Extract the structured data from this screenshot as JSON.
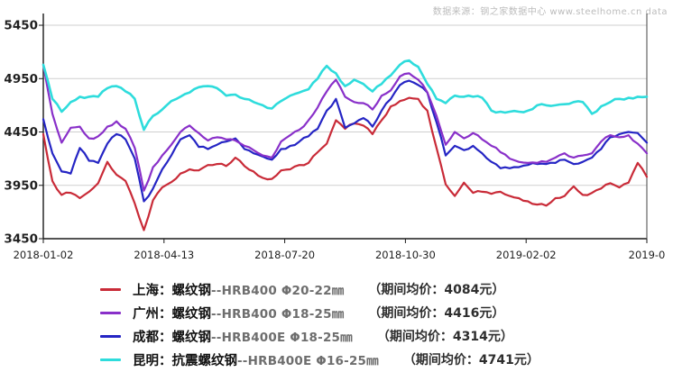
{
  "watermark": "数据来源：钢之家数据中心 www.steelhome.cn data",
  "chart_data": {
    "type": "line",
    "title": "",
    "xlabel": "",
    "ylabel": "",
    "grid": true,
    "legend_position": "bottom",
    "ylim": [
      3450,
      5560
    ],
    "y_ticks": [
      5450,
      4950,
      4450,
      3950,
      3450
    ],
    "x_tick_labels": [
      "2018-01-02",
      "2018-04-13",
      "2018-07-20",
      "2018-10-30",
      "2019-02-02",
      "2019-0"
    ],
    "series": [
      {
        "key": "shanghai",
        "label": "上海：螺纹钢",
        "code": "--HRB400  Φ20-22㎜",
        "avg_label": "（期间均价：4084元）",
        "avg_value": 4084,
        "color": "#c92b38",
        "values": [
          4430,
          3990,
          3860,
          3880,
          3830,
          3890,
          3970,
          4170,
          4050,
          3990,
          3780,
          3530,
          3810,
          3930,
          3980,
          4060,
          4100,
          4090,
          4140,
          4150,
          4130,
          4210,
          4130,
          4080,
          4020,
          4010,
          4090,
          4100,
          4140,
          4160,
          4260,
          4340,
          4560,
          4480,
          4530,
          4510,
          4430,
          4560,
          4690,
          4740,
          4770,
          4760,
          4650,
          4300,
          3960,
          3850,
          3975,
          3880,
          3890,
          3870,
          3890,
          3850,
          3830,
          3800,
          3770,
          3760,
          3830,
          3850,
          3940,
          3860,
          3880,
          3920,
          3970,
          3930,
          3975,
          4160,
          4030
        ]
      },
      {
        "key": "guangzhou",
        "label": "广州：螺纹钢",
        "code": "--HRB400  Φ18-25㎜",
        "avg_label": "（期间均价：4416元）",
        "avg_value": 4416,
        "color": "#8930c9",
        "values": [
          5080,
          4620,
          4350,
          4490,
          4500,
          4390,
          4410,
          4500,
          4550,
          4480,
          4300,
          3900,
          4120,
          4230,
          4330,
          4450,
          4510,
          4440,
          4370,
          4400,
          4380,
          4370,
          4320,
          4280,
          4230,
          4210,
          4360,
          4420,
          4470,
          4560,
          4680,
          4830,
          4940,
          4780,
          4730,
          4720,
          4660,
          4790,
          4840,
          4970,
          5000,
          4940,
          4820,
          4600,
          4330,
          4450,
          4390,
          4440,
          4380,
          4320,
          4260,
          4200,
          4170,
          4160,
          4160,
          4170,
          4210,
          4250,
          4210,
          4230,
          4250,
          4360,
          4420,
          4400,
          4420,
          4340,
          4250
        ]
      },
      {
        "key": "chengdu",
        "label": "成都：螺纹钢",
        "code": "--HRB400E  Φ18-25㎜",
        "avg_label": "（期间均价：4314元）",
        "avg_value": 4314,
        "color": "#2525c4",
        "values": [
          4570,
          4250,
          4080,
          4060,
          4300,
          4180,
          4160,
          4340,
          4430,
          4380,
          4200,
          3800,
          3920,
          4100,
          4230,
          4380,
          4420,
          4310,
          4290,
          4330,
          4360,
          4390,
          4290,
          4250,
          4220,
          4190,
          4290,
          4320,
          4360,
          4410,
          4480,
          4650,
          4760,
          4490,
          4530,
          4580,
          4500,
          4650,
          4760,
          4890,
          4930,
          4890,
          4820,
          4540,
          4230,
          4320,
          4280,
          4320,
          4250,
          4170,
          4110,
          4110,
          4120,
          4140,
          4150,
          4150,
          4160,
          4190,
          4150,
          4170,
          4210,
          4290,
          4400,
          4430,
          4450,
          4440,
          4350
        ]
      },
      {
        "key": "kunming",
        "label": "昆明：抗震螺纹钢",
        "code": "--HRB400E  Φ16-25㎜",
        "avg_label": "（期间均价：4741元）",
        "avg_value": 4741,
        "color": "#2edcdc",
        "values": [
          5080,
          4760,
          4640,
          4730,
          4780,
          4780,
          4780,
          4860,
          4880,
          4830,
          4760,
          4470,
          4600,
          4660,
          4740,
          4780,
          4820,
          4870,
          4880,
          4860,
          4790,
          4800,
          4760,
          4730,
          4700,
          4670,
          4740,
          4790,
          4820,
          4850,
          4950,
          5070,
          5000,
          4880,
          4940,
          4900,
          4830,
          4900,
          4980,
          5080,
          5120,
          5060,
          4900,
          4760,
          4720,
          4790,
          4780,
          4780,
          4770,
          4650,
          4640,
          4640,
          4640,
          4650,
          4700,
          4700,
          4700,
          4710,
          4730,
          4730,
          4620,
          4690,
          4730,
          4760,
          4770,
          4780,
          4780
        ]
      }
    ],
    "colors": {
      "grid": "#cfcfcf",
      "axis": "#1a1a1a",
      "tick_label": "#1f1f1f"
    }
  }
}
